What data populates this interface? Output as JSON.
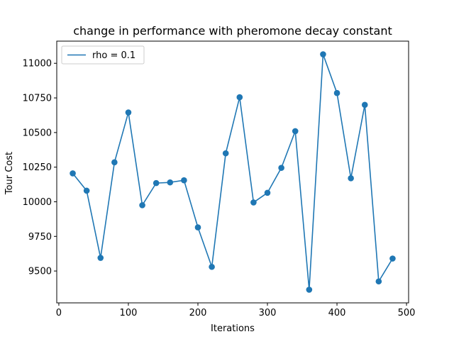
{
  "chart_data": {
    "type": "line",
    "title": "change in performance with pheromone decay constant",
    "xlabel": "Iterations",
    "ylabel": "Tour Cost",
    "xlim": [
      -3,
      503
    ],
    "ylim": [
      9270,
      11160
    ],
    "xticks": [
      0,
      100,
      200,
      300,
      400,
      500
    ],
    "xtick_labels": [
      "0",
      "100",
      "200",
      "300",
      "400",
      "500"
    ],
    "yticks": [
      9500,
      9750,
      10000,
      10250,
      10500,
      10750,
      11000
    ],
    "ytick_labels": [
      "9500",
      "9750",
      "10000",
      "10250",
      "10500",
      "10750",
      "11000"
    ],
    "grid": false,
    "legend_position": "top-left",
    "series": [
      {
        "name": "rho = 0.1",
        "color": "#1f77b4",
        "markers": true,
        "x": [
          20,
          40,
          60,
          80,
          100,
          120,
          140,
          160,
          180,
          200,
          220,
          240,
          260,
          280,
          300,
          320,
          340,
          360,
          380,
          400,
          420,
          440,
          460,
          480
        ],
        "y": [
          10205,
          10080,
          9595,
          10285,
          10645,
          9975,
          10135,
          10140,
          10155,
          9815,
          9530,
          10350,
          10755,
          9995,
          10065,
          10245,
          10510,
          9365,
          11065,
          10785,
          10170,
          10700,
          9425,
          9590
        ]
      }
    ]
  }
}
